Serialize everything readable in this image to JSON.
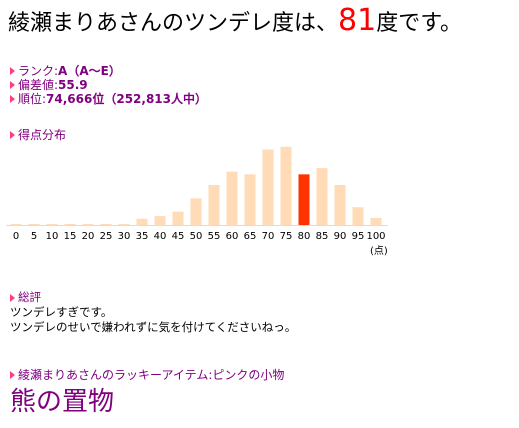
{
  "headline": {
    "name": "綾瀬まりあさん",
    "middle": "のツンデレ度は、",
    "score": "81",
    "suffix": "度です。"
  },
  "stats": {
    "rank_label": "ランク:",
    "rank_value": "A（A〜E）",
    "deviation_label": "偏差値:",
    "deviation_value": "55.9",
    "position_label": "順位:",
    "position_value": "74,666位（252,813人中）"
  },
  "distribution": {
    "title": "得点分布"
  },
  "chart_data": {
    "type": "bar",
    "categories": [
      "0",
      "5",
      "10",
      "15",
      "20",
      "25",
      "30",
      "35",
      "40",
      "45",
      "50",
      "55",
      "60",
      "65",
      "70",
      "75",
      "80",
      "85",
      "90",
      "95",
      "100"
    ],
    "values": [
      0.5,
      0.5,
      0.5,
      0.5,
      0.5,
      0.5,
      1,
      7,
      10,
      15,
      30,
      45,
      60,
      57,
      85,
      88,
      57,
      64,
      45,
      20,
      8
    ],
    "highlight_index": 16,
    "unit_label": "(点)",
    "colors": {
      "bar": "#ffdbb8",
      "highlight": "#ff3300"
    }
  },
  "review": {
    "title": "総評",
    "line1": "ツンデレすぎです。",
    "line2": "ツンデレのせいで嫌われずに気を付けてくださいねっ。"
  },
  "lucky": {
    "label": "綾瀬まりあさんのラッキーアイテム:ピンクの小物",
    "item": "熊の置物"
  }
}
